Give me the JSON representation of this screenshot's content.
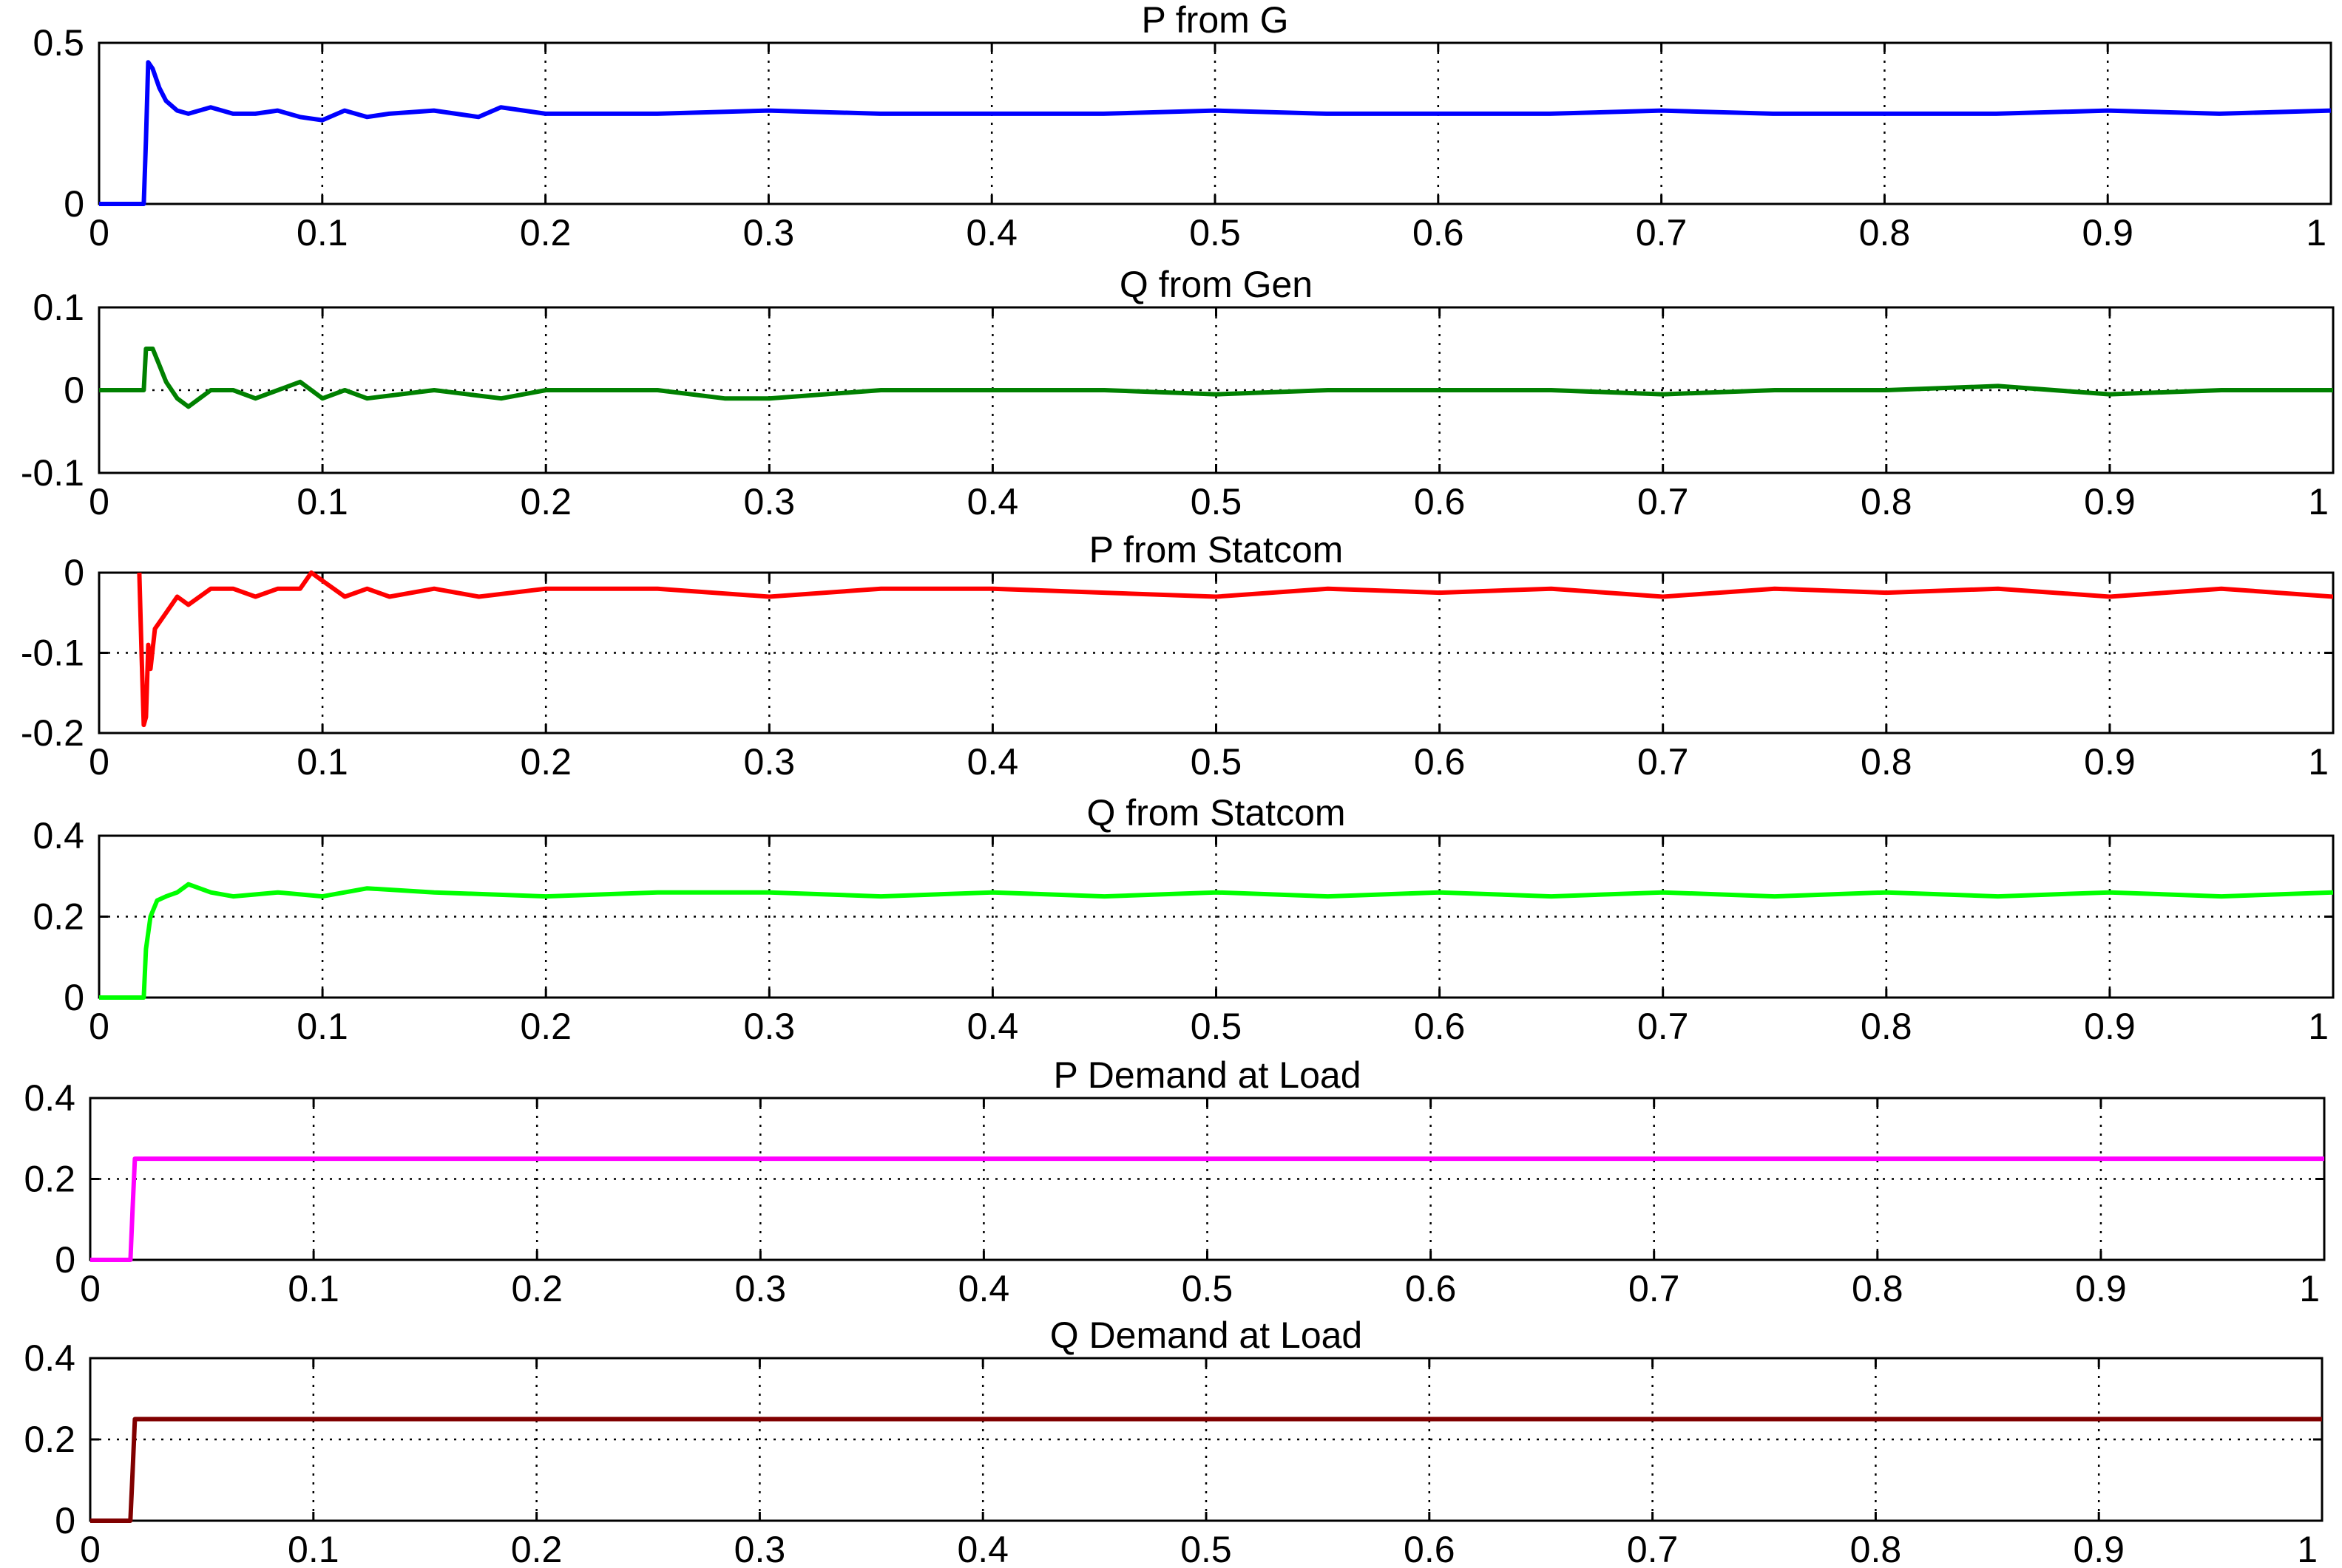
{
  "chart_data": [
    {
      "type": "line",
      "title": "P from G",
      "color": "#0000ff",
      "grid": true,
      "xlim": [
        0,
        1
      ],
      "ylim": [
        0,
        0.5
      ],
      "xticks": [
        "0",
        "0.1",
        "0.2",
        "0.3",
        "0.4",
        "0.5",
        "0.6",
        "0.7",
        "0.8",
        "0.9",
        "1"
      ],
      "yticks": [
        "0",
        "0.5"
      ],
      "series": [
        {
          "x": [
            0,
            0.02,
            0.021,
            0.022,
            0.024,
            0.027,
            0.03,
            0.035,
            0.04,
            0.05,
            0.06,
            0.07,
            0.08,
            0.09,
            0.1,
            0.11,
            0.12,
            0.13,
            0.15,
            0.17,
            0.18,
            0.2,
            0.25,
            0.3,
            0.35,
            0.4,
            0.45,
            0.5,
            0.55,
            0.6,
            0.65,
            0.7,
            0.75,
            0.8,
            0.85,
            0.9,
            0.95,
            1.0
          ],
          "y": [
            0,
            0,
            0.2,
            0.44,
            0.42,
            0.36,
            0.32,
            0.29,
            0.28,
            0.3,
            0.28,
            0.28,
            0.29,
            0.27,
            0.26,
            0.29,
            0.27,
            0.28,
            0.29,
            0.27,
            0.3,
            0.28,
            0.28,
            0.29,
            0.28,
            0.28,
            0.28,
            0.29,
            0.28,
            0.28,
            0.28,
            0.29,
            0.28,
            0.28,
            0.28,
            0.29,
            0.28,
            0.29
          ]
        }
      ]
    },
    {
      "type": "line",
      "title": "Q from Gen",
      "color": "#008000",
      "grid": true,
      "xlim": [
        0,
        1
      ],
      "ylim": [
        -0.1,
        0.1
      ],
      "xticks": [
        "0",
        "0.1",
        "0.2",
        "0.3",
        "0.4",
        "0.5",
        "0.6",
        "0.7",
        "0.8",
        "0.9",
        "1"
      ],
      "yticks": [
        "-0.1",
        "0",
        "0.1"
      ],
      "series": [
        {
          "x": [
            0,
            0.02,
            0.021,
            0.024,
            0.027,
            0.03,
            0.035,
            0.04,
            0.045,
            0.05,
            0.06,
            0.07,
            0.08,
            0.09,
            0.1,
            0.11,
            0.12,
            0.15,
            0.18,
            0.2,
            0.25,
            0.28,
            0.3,
            0.35,
            0.4,
            0.45,
            0.5,
            0.55,
            0.6,
            0.65,
            0.7,
            0.75,
            0.8,
            0.85,
            0.9,
            0.95,
            1.0
          ],
          "y": [
            0,
            0,
            0.05,
            0.05,
            0.03,
            0.01,
            -0.01,
            -0.02,
            -0.01,
            0,
            0.0,
            -0.01,
            0.0,
            0.01,
            -0.01,
            0.0,
            -0.01,
            0.0,
            -0.01,
            0.0,
            0.0,
            -0.01,
            -0.01,
            0.0,
            0.0,
            0.0,
            -0.005,
            0.0,
            0.0,
            0.0,
            -0.005,
            0.0,
            0.0,
            0.005,
            -0.005,
            0.0,
            0.0
          ]
        }
      ]
    },
    {
      "type": "line",
      "title": "P from Statcom",
      "color": "#ff0000",
      "grid": true,
      "xlim": [
        0,
        1
      ],
      "ylim": [
        -0.2,
        0
      ],
      "xticks": [
        "0",
        "0.1",
        "0.2",
        "0.3",
        "0.4",
        "0.5",
        "0.6",
        "0.7",
        "0.8",
        "0.9",
        "1"
      ],
      "yticks": [
        "-0.2",
        "-0.1",
        "0"
      ],
      "series": [
        {
          "x": [
            0.018,
            0.019,
            0.02,
            0.021,
            0.022,
            0.023,
            0.025,
            0.03,
            0.035,
            0.04,
            0.05,
            0.06,
            0.07,
            0.08,
            0.09,
            0.095,
            0.1,
            0.11,
            0.12,
            0.13,
            0.15,
            0.17,
            0.2,
            0.25,
            0.3,
            0.35,
            0.4,
            0.45,
            0.5,
            0.55,
            0.6,
            0.65,
            0.7,
            0.75,
            0.8,
            0.85,
            0.9,
            0.95,
            1.0
          ],
          "y": [
            0,
            -0.1,
            -0.19,
            -0.18,
            -0.09,
            -0.12,
            -0.07,
            -0.05,
            -0.03,
            -0.04,
            -0.02,
            -0.02,
            -0.03,
            -0.02,
            -0.02,
            0.0,
            -0.01,
            -0.03,
            -0.02,
            -0.03,
            -0.02,
            -0.03,
            -0.02,
            -0.02,
            -0.03,
            -0.02,
            -0.02,
            -0.025,
            -0.03,
            -0.02,
            -0.025,
            -0.02,
            -0.03,
            -0.02,
            -0.025,
            -0.02,
            -0.03,
            -0.02,
            -0.03
          ]
        }
      ]
    },
    {
      "type": "line",
      "title": "Q from Statcom",
      "color": "#00ff00",
      "grid": true,
      "xlim": [
        0,
        1
      ],
      "ylim": [
        0,
        0.4
      ],
      "xticks": [
        "0",
        "0.1",
        "0.2",
        "0.3",
        "0.4",
        "0.5",
        "0.6",
        "0.7",
        "0.8",
        "0.9",
        "1"
      ],
      "yticks": [
        "0",
        "0.2",
        "0.4"
      ],
      "series": [
        {
          "x": [
            0,
            0.02,
            0.021,
            0.023,
            0.026,
            0.03,
            0.035,
            0.04,
            0.045,
            0.05,
            0.06,
            0.08,
            0.1,
            0.12,
            0.15,
            0.2,
            0.25,
            0.3,
            0.35,
            0.4,
            0.45,
            0.5,
            0.55,
            0.6,
            0.65,
            0.7,
            0.75,
            0.8,
            0.85,
            0.9,
            0.95,
            1.0
          ],
          "y": [
            0,
            0,
            0.12,
            0.2,
            0.24,
            0.25,
            0.26,
            0.28,
            0.27,
            0.26,
            0.25,
            0.26,
            0.25,
            0.27,
            0.26,
            0.25,
            0.26,
            0.26,
            0.25,
            0.26,
            0.25,
            0.26,
            0.25,
            0.26,
            0.25,
            0.26,
            0.25,
            0.26,
            0.25,
            0.26,
            0.25,
            0.26
          ]
        }
      ]
    },
    {
      "type": "line",
      "title": "P Demand at Load",
      "color": "#ff00ff",
      "grid": true,
      "xlim": [
        0,
        1
      ],
      "ylim": [
        0,
        0.4
      ],
      "xticks": [
        "0",
        "0.1",
        "0.2",
        "0.3",
        "0.4",
        "0.5",
        "0.6",
        "0.7",
        "0.8",
        "0.9",
        "1"
      ],
      "yticks": [
        "0",
        "0.2",
        "0.4"
      ],
      "series": [
        {
          "x": [
            0,
            0.018,
            0.019,
            0.02,
            1.0
          ],
          "y": [
            0,
            0,
            0.13,
            0.25,
            0.25
          ]
        }
      ]
    },
    {
      "type": "line",
      "title": "Q Demand at Load",
      "color": "#800000",
      "grid": true,
      "xlim": [
        0,
        1
      ],
      "ylim": [
        0,
        0.4
      ],
      "xticks": [
        "0",
        "0.1",
        "0.2",
        "0.3",
        "0.4",
        "0.5",
        "0.6",
        "0.7",
        "0.8",
        "0.9",
        "1"
      ],
      "yticks": [
        "0",
        "0.2",
        "0.4"
      ],
      "series": [
        {
          "x": [
            0,
            0.018,
            0.019,
            0.02,
            1.0
          ],
          "y": [
            0,
            0,
            0.12,
            0.25,
            0.25
          ]
        }
      ]
    }
  ]
}
